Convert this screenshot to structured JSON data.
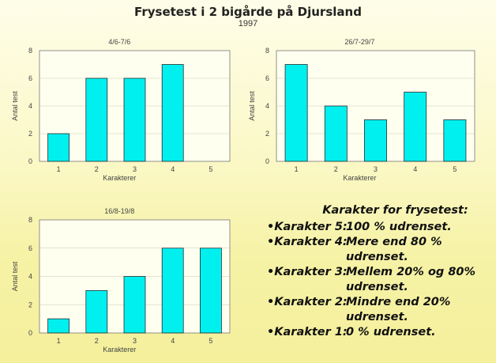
{
  "title": "Frysetest i 2 bigårde på Djursland",
  "subtitle": "1997",
  "chart_data": [
    {
      "type": "bar",
      "title": "4/6-7/6",
      "categories": [
        "1",
        "2",
        "3",
        "4",
        "5"
      ],
      "values": [
        2,
        6,
        6,
        7,
        0
      ],
      "xlabel": "Karakterer",
      "ylabel": "Antal test",
      "ylim": [
        0,
        8
      ],
      "yticks": [
        0,
        2,
        4,
        6,
        8
      ],
      "grid": true
    },
    {
      "type": "bar",
      "title": "26/7-29/7",
      "categories": [
        "1",
        "2",
        "3",
        "4",
        "5"
      ],
      "values": [
        7,
        4,
        3,
        5,
        3
      ],
      "xlabel": "Karakterer",
      "ylabel": "Antal test",
      "ylim": [
        0,
        8
      ],
      "yticks": [
        0,
        2,
        4,
        6,
        8
      ],
      "grid": true
    },
    {
      "type": "bar",
      "title": "16/8-19/8",
      "categories": [
        "1",
        "2",
        "3",
        "4",
        "5"
      ],
      "values": [
        1,
        3,
        4,
        6,
        6
      ],
      "xlabel": "Karakterer",
      "ylabel": "Antal test",
      "ylim": [
        0,
        8
      ],
      "yticks": [
        0,
        2,
        4,
        6,
        8
      ],
      "grid": true
    }
  ],
  "legend": {
    "heading": "Karakter for frysetest:",
    "items": [
      {
        "key": "•Karakter 5:",
        "desc": "100 % udrenset."
      },
      {
        "key": "•Karakter 4:",
        "desc": "Mere end 80 % udrenset."
      },
      {
        "key": "•Karakter 3:",
        "desc": "Mellem 20% og 80% udrenset."
      },
      {
        "key": "•Karakter 2:",
        "desc": "Mindre end 20% udrenset."
      },
      {
        "key": "•Karakter 1:",
        "desc": "0 % udrenset."
      }
    ]
  },
  "colors": {
    "bar": "#00f0f0",
    "background": "#fbf8c6"
  }
}
